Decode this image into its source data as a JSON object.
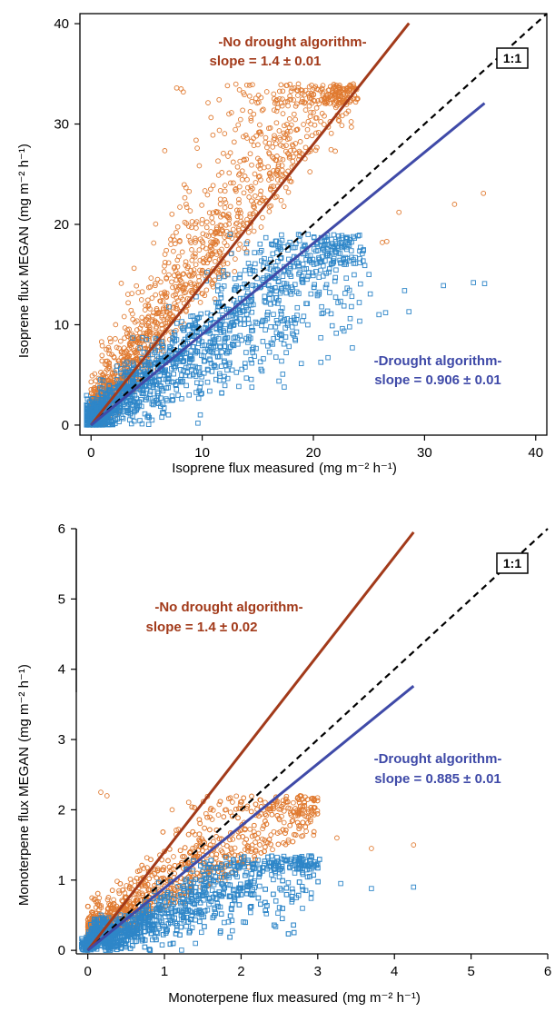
{
  "chart_data": [
    {
      "type": "scatter",
      "xlabel": "Isoprene flux measured",
      "ylabel": "Isoprene flux MEGAN",
      "unit_text": "(mg m⁻² h⁻¹)",
      "xlim": [
        -1,
        41
      ],
      "ylim": [
        -1,
        41
      ],
      "xticks": [
        "0",
        "10",
        "20",
        "30",
        "40"
      ],
      "yticks": [
        "0",
        "10",
        "20",
        "30",
        "40"
      ],
      "grid": false,
      "reference_label": "1:1",
      "series": [
        {
          "name": "No drought algorithm",
          "color": "#E07A30",
          "marker": "circle",
          "fit": {
            "slope": 1.4,
            "x_end": 28.6,
            "color": "#A23A1A"
          },
          "label_lines": [
            "-No drought algorithm-",
            "slope = 1.4 ± 0.01"
          ]
        },
        {
          "name": "Drought algorithm",
          "color": "#2E86C8",
          "marker": "square",
          "fit": {
            "slope": 0.906,
            "x_end": 35.4,
            "color": "#3F4AA8"
          },
          "label_lines": [
            "-Drought algorithm-",
            "slope = 0.906 ± 0.01"
          ]
        }
      ],
      "highlight_points": {
        "no_drought": [
          [
            7.7,
            33.6
          ],
          [
            8.1,
            33.5
          ],
          [
            8.3,
            33.2
          ],
          [
            32.7,
            22.0
          ],
          [
            35.3,
            23.1
          ],
          [
            26.2,
            18.2
          ],
          [
            26.6,
            18.3
          ],
          [
            27.7,
            21.2
          ],
          [
            12.4,
            31.0
          ],
          [
            17.2,
            31.8
          ]
        ],
        "drought": [
          [
            34.4,
            14.2
          ],
          [
            35.4,
            14.1
          ],
          [
            31.7,
            13.9
          ],
          [
            28.6,
            11.3
          ],
          [
            26.5,
            11.2
          ],
          [
            25.9,
            11.0
          ],
          [
            28.2,
            13.4
          ],
          [
            25.0,
            15.0
          ]
        ]
      }
    },
    {
      "type": "scatter",
      "xlabel": "Monoterpene flux measured",
      "ylabel": "Monoterpene flux MEGAN",
      "unit_text": "(mg m⁻² h⁻¹)",
      "xlim": [
        -0.15,
        6.0
      ],
      "ylim": [
        -0.05,
        6.0
      ],
      "xticks": [
        "0",
        "1",
        "2",
        "3",
        "4",
        "5",
        "6"
      ],
      "yticks": [
        "0",
        "1",
        "2",
        "3",
        "4",
        "5",
        "6"
      ],
      "grid": false,
      "reference_label": "1:1",
      "series": [
        {
          "name": "No drought algorithm",
          "color": "#E07A30",
          "marker": "circle",
          "fit": {
            "slope": 1.4,
            "x_end": 4.25,
            "color": "#A23A1A"
          },
          "label_lines": [
            "-No drought algorithm-",
            "slope = 1.4 ± 0.02"
          ]
        },
        {
          "name": "Drought algorithm",
          "color": "#2E86C8",
          "marker": "square",
          "fit": {
            "slope": 0.885,
            "x_end": 4.25,
            "color": "#3F4AA8"
          },
          "label_lines": [
            "-Drought algorithm-",
            "slope = 0.885 ± 0.01"
          ]
        }
      ],
      "highlight_points": {
        "no_drought": [
          [
            3.7,
            1.45
          ],
          [
            4.25,
            1.5
          ],
          [
            3.25,
            1.6
          ],
          [
            2.95,
            2.15
          ],
          [
            0.17,
            2.25
          ],
          [
            0.25,
            2.2
          ],
          [
            1.1,
            2.0
          ]
        ],
        "drought": [
          [
            3.7,
            0.88
          ],
          [
            4.25,
            0.9
          ],
          [
            3.3,
            0.95
          ],
          [
            2.7,
            1.1
          ]
        ]
      }
    }
  ]
}
